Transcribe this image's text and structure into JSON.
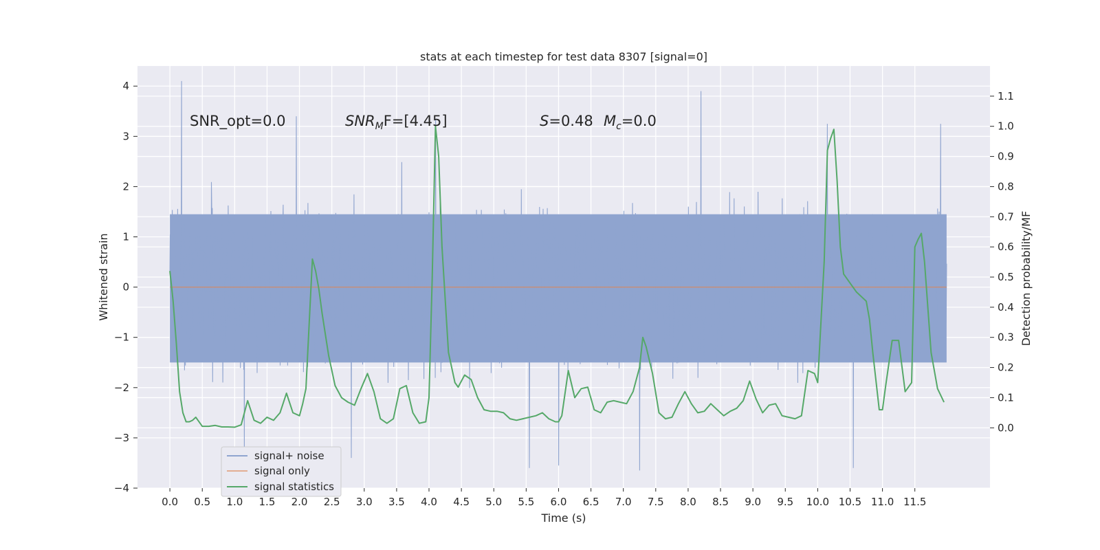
{
  "chart_data": {
    "type": "line",
    "title": "stats at each timestep for test data 8307 [signal=0]",
    "xlabel": "Time (s)",
    "ylabel": "Whitened strain",
    "y2label": "Detection probability/MF",
    "xlim": [
      -0.5,
      12.66
    ],
    "ylim": [
      -4.0,
      4.4
    ],
    "y2lim": [
      -0.2,
      1.2
    ],
    "x_ticks": [
      "0.0",
      "0.5",
      "1.0",
      "1.5",
      "2.0",
      "2.5",
      "3.0",
      "3.5",
      "4.0",
      "4.5",
      "5.0",
      "5.5",
      "6.0",
      "6.5",
      "7.0",
      "7.5",
      "8.0",
      "8.5",
      "9.0",
      "9.5",
      "10.0",
      "10.5",
      "11.0",
      "11.5"
    ],
    "y_ticks": [
      "4",
      "3",
      "2",
      "1",
      "0",
      "−1",
      "−2",
      "−3",
      "−4"
    ],
    "y2_ticks": [
      "1.1",
      "1.0",
      "0.9",
      "0.8",
      "0.7",
      "0.6",
      "0.5",
      "0.4",
      "0.3",
      "0.2",
      "0.1",
      "0.0"
    ],
    "grid": true,
    "legend_position": "lower-left",
    "annotations": {
      "snr_opt": "SNR_opt=0.0",
      "snr_mf_base": "SNR",
      "snr_mf_sub": "M",
      "snr_mf_rest": "F=[4.45]",
      "s_label": "S",
      "s_rest": "=0.48",
      "mc_label": "M",
      "mc_sub": "c",
      "mc_rest": "=0.0"
    },
    "series": [
      {
        "name": "signal+ noise",
        "color": "#8fa4cf",
        "axis": "left",
        "x_range": [
          0.0,
          11.99
        ],
        "envelope_core": [
          -1.5,
          1.45
        ],
        "y_max": 4.1,
        "y_min": -3.65,
        "peaks": [
          [
            0.18,
            4.1
          ],
          [
            8.2,
            3.9
          ],
          [
            10.15,
            3.25
          ],
          [
            11.9,
            3.25
          ],
          [
            4.1,
            3.35
          ],
          [
            1.95,
            3.4
          ]
        ],
        "troughs": [
          [
            7.25,
            -3.65
          ],
          [
            10.55,
            -3.6
          ],
          [
            5.55,
            -3.6
          ],
          [
            6.0,
            -3.55
          ],
          [
            1.15,
            -3.5
          ],
          [
            2.8,
            -3.4
          ]
        ]
      },
      {
        "name": "signal only",
        "color": "#dd8452",
        "axis": "left",
        "x": [
          0.0,
          11.99
        ],
        "y": [
          0.0,
          0.0
        ]
      },
      {
        "name": "signal statistics",
        "color": "#55a868",
        "axis": "right",
        "x": [
          0.0,
          0.05,
          0.1,
          0.15,
          0.2,
          0.25,
          0.3,
          0.35,
          0.4,
          0.5,
          0.6,
          0.7,
          0.8,
          0.9,
          1.0,
          1.1,
          1.2,
          1.3,
          1.4,
          1.5,
          1.6,
          1.7,
          1.8,
          1.9,
          2.0,
          2.05,
          2.1,
          2.2,
          2.25,
          2.3,
          2.35,
          2.45,
          2.55,
          2.65,
          2.75,
          2.85,
          2.95,
          3.05,
          3.15,
          3.25,
          3.35,
          3.45,
          3.55,
          3.65,
          3.75,
          3.85,
          3.95,
          4.0,
          4.05,
          4.1,
          4.15,
          4.2,
          4.3,
          4.4,
          4.45,
          4.55,
          4.65,
          4.75,
          4.85,
          4.95,
          5.05,
          5.15,
          5.25,
          5.35,
          5.45,
          5.55,
          5.65,
          5.75,
          5.85,
          5.95,
          6.0,
          6.05,
          6.15,
          6.25,
          6.35,
          6.45,
          6.55,
          6.65,
          6.75,
          6.85,
          6.95,
          7.05,
          7.15,
          7.25,
          7.3,
          7.35,
          7.45,
          7.55,
          7.65,
          7.75,
          7.85,
          7.95,
          8.05,
          8.15,
          8.25,
          8.35,
          8.45,
          8.55,
          8.65,
          8.75,
          8.85,
          8.95,
          9.05,
          9.15,
          9.25,
          9.35,
          9.45,
          9.55,
          9.65,
          9.75,
          9.85,
          9.95,
          10.0,
          10.1,
          10.15,
          10.2,
          10.25,
          10.3,
          10.35,
          10.4,
          10.5,
          10.6,
          10.7,
          10.75,
          10.8,
          10.85,
          10.95,
          11.0,
          11.05,
          11.15,
          11.25,
          11.35,
          11.45,
          11.5,
          11.55,
          11.6,
          11.65,
          11.75,
          11.85,
          11.95
        ],
        "y": [
          0.52,
          0.42,
          0.28,
          0.12,
          0.05,
          0.02,
          0.02,
          0.025,
          0.035,
          0.005,
          0.005,
          0.008,
          0.003,
          0.003,
          0.002,
          0.01,
          0.09,
          0.025,
          0.015,
          0.035,
          0.025,
          0.05,
          0.115,
          0.05,
          0.04,
          0.08,
          0.13,
          0.56,
          0.52,
          0.46,
          0.38,
          0.24,
          0.14,
          0.1,
          0.085,
          0.075,
          0.13,
          0.18,
          0.12,
          0.03,
          0.015,
          0.03,
          0.13,
          0.14,
          0.05,
          0.015,
          0.02,
          0.1,
          0.5,
          1.0,
          0.9,
          0.6,
          0.25,
          0.15,
          0.135,
          0.175,
          0.16,
          0.1,
          0.06,
          0.055,
          0.055,
          0.05,
          0.03,
          0.025,
          0.03,
          0.035,
          0.04,
          0.05,
          0.03,
          0.02,
          0.02,
          0.04,
          0.19,
          0.1,
          0.13,
          0.135,
          0.06,
          0.05,
          0.085,
          0.09,
          0.085,
          0.08,
          0.12,
          0.2,
          0.3,
          0.27,
          0.18,
          0.05,
          0.03,
          0.035,
          0.08,
          0.12,
          0.08,
          0.05,
          0.055,
          0.08,
          0.06,
          0.04,
          0.055,
          0.065,
          0.09,
          0.155,
          0.095,
          0.05,
          0.075,
          0.08,
          0.04,
          0.035,
          0.03,
          0.04,
          0.19,
          0.18,
          0.15,
          0.55,
          0.92,
          0.96,
          0.99,
          0.82,
          0.6,
          0.51,
          0.48,
          0.45,
          0.43,
          0.42,
          0.36,
          0.25,
          0.06,
          0.06,
          0.14,
          0.29,
          0.29,
          0.12,
          0.15,
          0.6,
          0.625,
          0.645,
          0.55,
          0.25,
          0.13,
          0.085
        ]
      }
    ]
  }
}
